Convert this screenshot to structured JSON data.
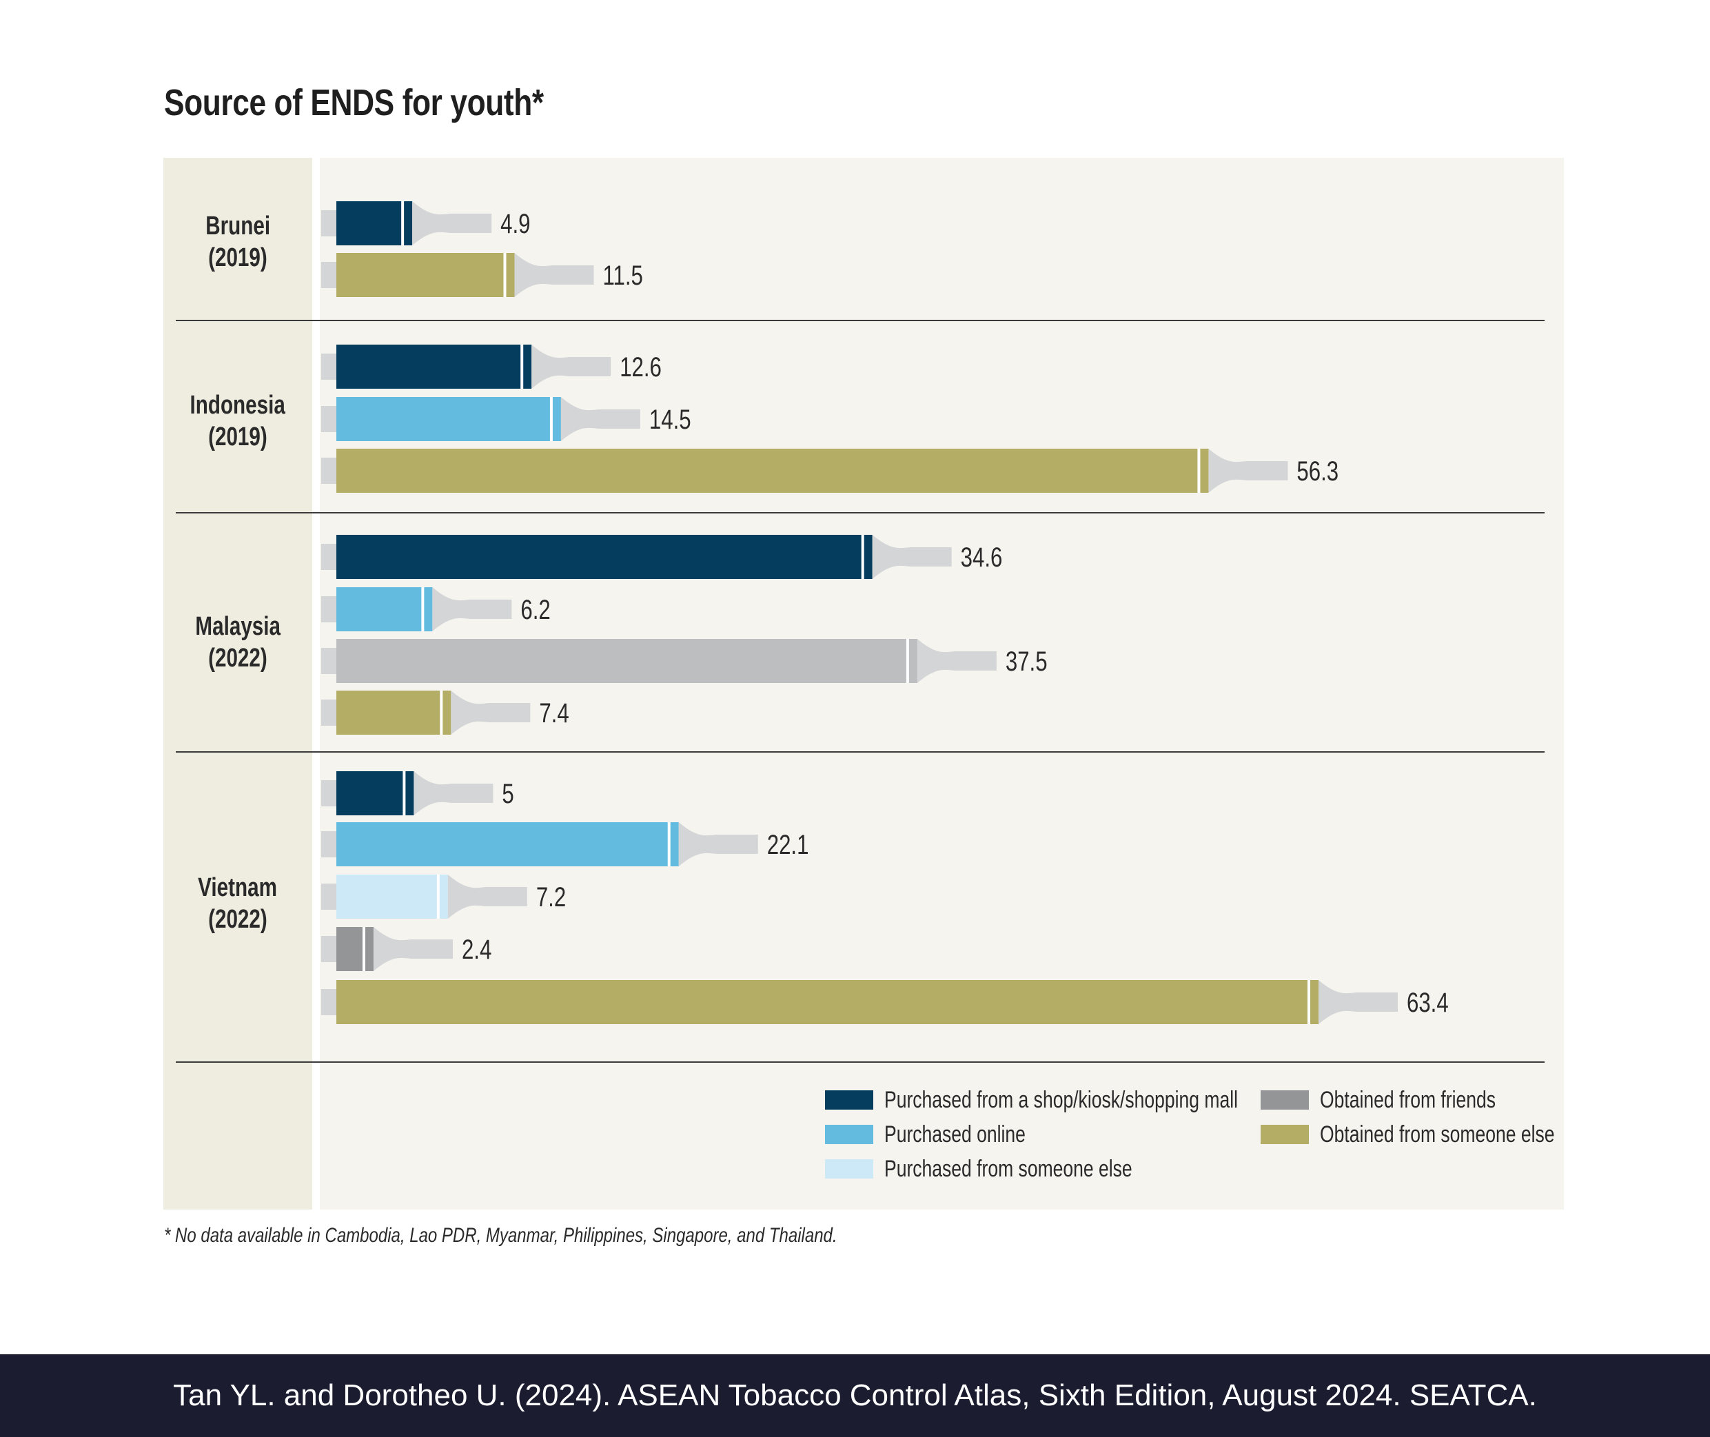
{
  "chart_data": {
    "type": "bar",
    "title": "Source of ENDS for youth*",
    "unit": "percent",
    "xlim": [
      0,
      63.4
    ],
    "categories": [
      "Purchased from a shop/kiosk/shopping mall",
      "Purchased online",
      "Purchased from someone else",
      "Obtained from friends",
      "Obtained from someone else"
    ],
    "colors": {
      "Purchased from a shop/kiosk/shopping mall": "#043d5d",
      "Purchased online": "#63bbe0",
      "Purchased from someone else": "#cde9f7",
      "Obtained from friends": "#939597",
      "Obtained from someone else": "#b4ad65",
      "Obtained from friends (Malaysia)": "#bdbec0"
    },
    "groups": [
      {
        "name": "Brunei",
        "year": "(2019)",
        "bars": [
          {
            "category": "Purchased from a shop/kiosk/shopping mall",
            "value": 4.9,
            "label": "4.9"
          },
          {
            "category": "Obtained from someone else",
            "value": 11.5,
            "label": "11.5"
          }
        ]
      },
      {
        "name": "Indonesia",
        "year": "(2019)",
        "bars": [
          {
            "category": "Purchased from a shop/kiosk/shopping mall",
            "value": 12.6,
            "label": "12.6"
          },
          {
            "category": "Purchased online",
            "value": 14.5,
            "label": "14.5"
          },
          {
            "category": "Obtained from someone else",
            "value": 56.3,
            "label": "56.3"
          }
        ]
      },
      {
        "name": "Malaysia",
        "year": "(2022)",
        "bars": [
          {
            "category": "Purchased from a shop/kiosk/shopping mall",
            "value": 34.6,
            "label": "34.6"
          },
          {
            "category": "Purchased online",
            "value": 6.2,
            "label": "6.2"
          },
          {
            "category": "Obtained from friends",
            "value": 37.5,
            "label": "37.5",
            "color_key": "Obtained from friends (Malaysia)"
          },
          {
            "category": "Obtained from someone else",
            "value": 7.4,
            "label": "7.4"
          }
        ]
      },
      {
        "name": "Vietnam",
        "year": "(2022)",
        "bars": [
          {
            "category": "Purchased from a shop/kiosk/shopping mall",
            "value": 5,
            "label": "5"
          },
          {
            "category": "Purchased online",
            "value": 22.1,
            "label": "22.1"
          },
          {
            "category": "Purchased from someone else",
            "value": 7.2,
            "label": "7.2"
          },
          {
            "category": "Obtained from friends",
            "value": 2.4,
            "label": "2.4"
          },
          {
            "category": "Obtained from someone else",
            "value": 63.4,
            "label": "63.4"
          }
        ]
      }
    ],
    "legend": [
      "Purchased from a shop/kiosk/shopping mall",
      "Purchased online",
      "Purchased from someone else",
      "Obtained from friends",
      "Obtained from someone else"
    ],
    "legend_position": "bottom-right"
  },
  "footnote": "* No data available in Cambodia, Lao PDR, Myanmar, Philippines, Singapore, and Thailand.",
  "citation": "Tan YL. and Dorotheo U. (2024). ASEAN Tobacco Control Atlas, Sixth Edition, August 2024. SEATCA."
}
